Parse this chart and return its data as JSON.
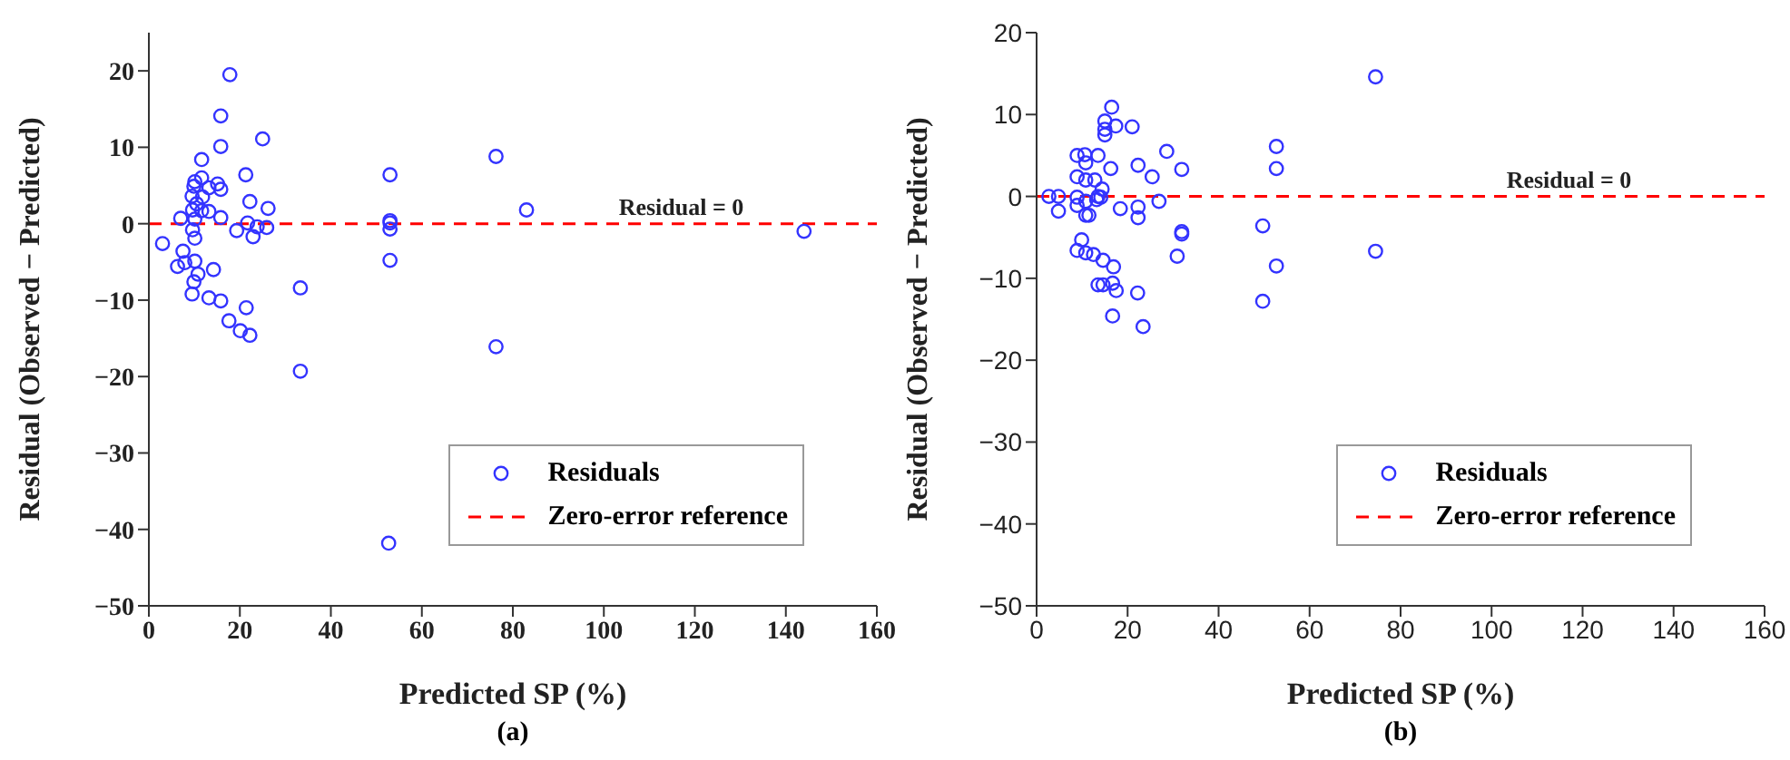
{
  "chart_data": [
    {
      "type": "scatter",
      "xlabel": "Predicted SP (%)",
      "ylabel": "Residual (Observed − Predicted)",
      "xlim": [
        0,
        160
      ],
      "xticks": [
        0,
        20,
        40,
        60,
        80,
        100,
        120,
        140,
        160
      ],
      "ylim": [
        -50,
        25
      ],
      "yticks": [
        -50,
        -40,
        -30,
        -20,
        -10,
        0,
        10,
        20
      ],
      "grid": false,
      "legend": "bottom right",
      "marker": "circle",
      "annotations": [
        {
          "text": "Residual = 0",
          "x": 117,
          "y": 0
        },
        "(a)"
      ],
      "series": [
        {
          "name": "Residuals",
          "color": "#3333ff",
          "x": [
            17.8,
            15.8,
            15.8,
            25,
            11.6,
            11.6,
            10.1,
            9.9,
            13.2,
            15.1,
            15.8,
            11.8,
            9.5,
            10.5,
            9.6,
            11.6,
            13.2,
            15.8,
            7.0,
            10.1,
            9.6,
            10.1,
            21.3,
            22.2,
            26.2,
            21.7,
            19.3,
            22.9,
            23.8,
            25.9,
            3.0,
            7.5,
            6.3,
            7.9,
            10.1,
            10.8,
            14.2,
            9.9,
            9.5,
            13.2,
            15.8,
            21.4,
            17.6,
            20.1,
            22.2,
            33.3,
            33.3,
            53.0,
            53.0,
            53.0,
            53.0,
            53.0,
            52.7,
            76.3,
            76.3,
            83.0,
            144
          ],
          "values": [
            19.5,
            14.1,
            10.1,
            11.1,
            8.4,
            6.0,
            5.5,
            4.9,
            4.7,
            5.2,
            4.5,
            3.5,
            3.6,
            2.6,
            1.8,
            1.7,
            1.6,
            0.8,
            0.7,
            0.6,
            -0.8,
            -1.9,
            6.4,
            2.9,
            2.0,
            0.1,
            -0.9,
            -1.7,
            -0.4,
            -0.5,
            -2.6,
            -3.6,
            -5.6,
            -5.1,
            -4.9,
            -6.6,
            -6.0,
            -7.6,
            -9.2,
            -9.7,
            -10.1,
            -11.0,
            -12.7,
            -14.0,
            -14.6,
            -8.4,
            -19.3,
            6.4,
            0.4,
            0.1,
            -0.7,
            -4.8,
            -41.8,
            8.8,
            -16.1,
            1.8,
            -1.0
          ]
        },
        {
          "name": "Zero-error reference",
          "type": "line",
          "line_style": "dashed",
          "marker": "none",
          "color": "#ff0000",
          "x": [
            0,
            160
          ],
          "values": [
            0,
            0
          ]
        }
      ]
    },
    {
      "type": "scatter",
      "xlabel": "Predicted SP (%)",
      "ylabel": "Residual (Observed − Predicted)",
      "xlim": [
        0,
        160
      ],
      "xticks": [
        0,
        20,
        40,
        60,
        80,
        100,
        120,
        140,
        160
      ],
      "ylim": [
        -50,
        20
      ],
      "yticks": [
        -50,
        -40,
        -30,
        -20,
        -10,
        0,
        10,
        20
      ],
      "grid": false,
      "legend": "bottom right",
      "marker": "circle",
      "annotations": [
        {
          "text": "Residual = 0",
          "x": 117,
          "y": 0
        },
        "(b)"
      ],
      "series": [
        {
          "name": "Residuals",
          "color": "#3333ff",
          "x": [
            74.5,
            16.5,
            15.0,
            15.0,
            15.0,
            17.4,
            21.0,
            28.6,
            52.7,
            52.7,
            8.9,
            10.6,
            10.8,
            13.5,
            16.3,
            22.3,
            31.9,
            25.4,
            8.9,
            10.8,
            12.8,
            14.4,
            13.5,
            14.1,
            13.2,
            10.8,
            8.9,
            8.9,
            2.7,
            4.8,
            4.8,
            10.8,
            11.5,
            18.4,
            22.3,
            22.3,
            26.9,
            31.9,
            31.9,
            30.9,
            49.7,
            74.5,
            52.7,
            49.7,
            9.9,
            8.9,
            10.8,
            12.5,
            14.6,
            16.9,
            13.5,
            14.6,
            16.7,
            17.5,
            22.2,
            16.7,
            23.4
          ],
          "values": [
            14.6,
            10.9,
            9.2,
            8.2,
            7.5,
            8.6,
            8.5,
            5.5,
            6.1,
            3.4,
            5.0,
            5.1,
            4.1,
            5.0,
            3.4,
            3.8,
            3.3,
            2.4,
            2.4,
            2.0,
            2.0,
            0.9,
            0,
            -0.1,
            -0.4,
            -0.6,
            -0.1,
            -1.1,
            0,
            0,
            -1.8,
            -2.3,
            -2.3,
            -1.5,
            -1.3,
            -2.6,
            -0.6,
            -4.3,
            -4.6,
            -7.3,
            -3.6,
            -6.7,
            -8.5,
            -12.8,
            -5.3,
            -6.6,
            -6.9,
            -7.1,
            -7.8,
            -8.6,
            -10.8,
            -10.8,
            -10.6,
            -11.5,
            -11.8,
            -14.6,
            -15.9
          ]
        },
        {
          "name": "Zero-error reference",
          "type": "line",
          "line_style": "dashed",
          "marker": "none",
          "color": "#ff0000",
          "x": [
            0,
            160
          ],
          "values": [
            0,
            0
          ]
        }
      ]
    }
  ]
}
